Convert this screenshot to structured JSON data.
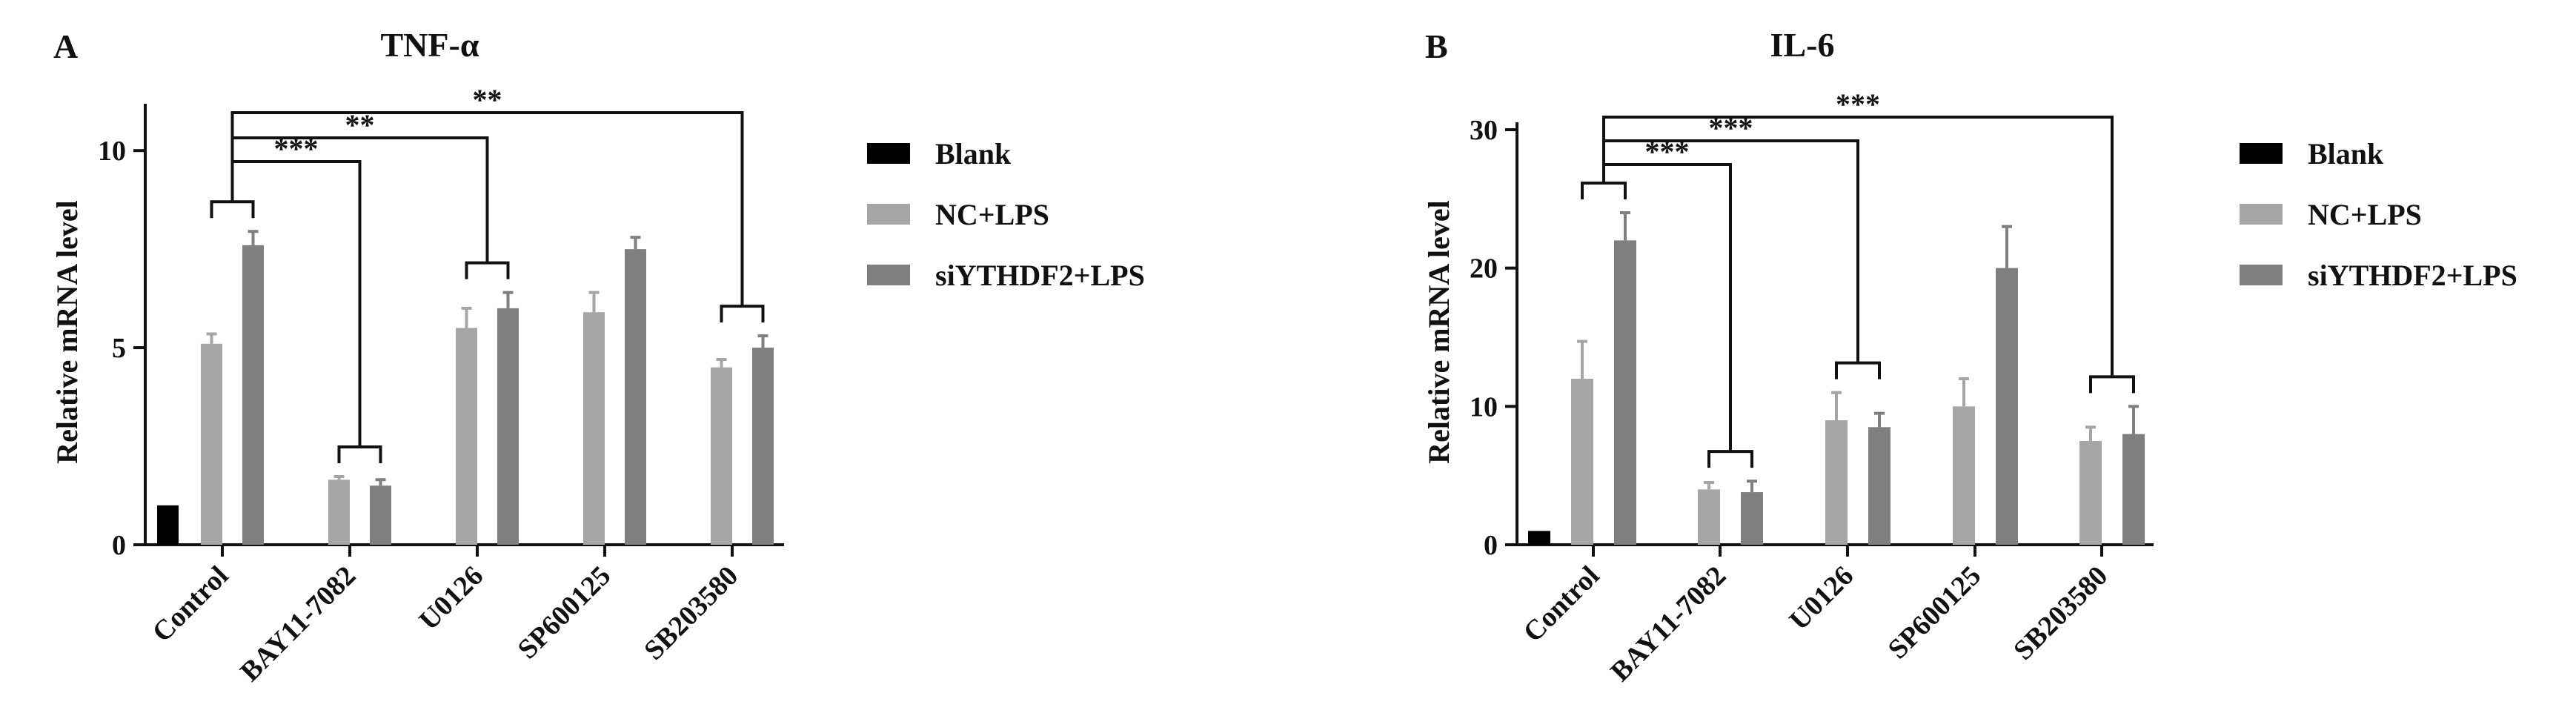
{
  "chart_data": [
    {
      "panel": "A",
      "type": "bar",
      "title": "TNF-α",
      "xlabel": "",
      "ylabel": "Relative mRNA level",
      "ylim": [
        0,
        11
      ],
      "yticks": [
        0,
        5,
        10
      ],
      "categories": [
        "Control",
        "BAY11-7082",
        "U0126",
        "SP600125",
        "SB203580"
      ],
      "legend_position": "right",
      "series": [
        {
          "name": "Blank",
          "color": "#000000",
          "values": [
            1.0,
            null,
            null,
            null,
            null
          ],
          "errors": [
            0,
            null,
            null,
            null,
            null
          ]
        },
        {
          "name": "NC+LPS",
          "color": "#a6a6a6",
          "values": [
            5.1,
            1.65,
            5.5,
            5.9,
            4.5
          ],
          "errors": [
            0.25,
            0.08,
            0.5,
            0.5,
            0.2
          ]
        },
        {
          "name": "siYTHDF2+LPS",
          "color": "#7f7f7f",
          "values": [
            7.6,
            1.5,
            6.0,
            7.5,
            5.0
          ],
          "errors": [
            0.35,
            0.15,
            0.4,
            0.3,
            0.3
          ]
        }
      ],
      "annotations": [
        {
          "label": "**",
          "from": "Control",
          "to": "SB203580"
        },
        {
          "label": "**",
          "from": "Control",
          "to": "U0126"
        },
        {
          "label": "***",
          "from": "Control",
          "to": "BAY11-7082"
        }
      ]
    },
    {
      "panel": "B",
      "type": "bar",
      "title": "IL-6",
      "xlabel": "",
      "ylabel": "Relative mRNA level",
      "ylim": [
        0,
        30
      ],
      "yticks": [
        0,
        10,
        20,
        30
      ],
      "categories": [
        "Control",
        "BAY11-7082",
        "U0126",
        "SP600125",
        "SB203580"
      ],
      "legend_position": "right",
      "series": [
        {
          "name": "Blank",
          "color": "#000000",
          "values": [
            1.0,
            null,
            null,
            null,
            null
          ],
          "errors": [
            0,
            null,
            null,
            null,
            null
          ]
        },
        {
          "name": "NC+LPS",
          "color": "#a6a6a6",
          "values": [
            12.0,
            4.0,
            9.0,
            10.0,
            7.5
          ],
          "errors": [
            2.7,
            0.5,
            2.0,
            2.0,
            1.0
          ]
        },
        {
          "name": "siYTHDF2+LPS",
          "color": "#7f7f7f",
          "values": [
            22.0,
            3.8,
            8.5,
            20.0,
            8.0
          ],
          "errors": [
            2.0,
            0.8,
            1.0,
            3.0,
            2.0
          ]
        }
      ],
      "annotations": [
        {
          "label": "***",
          "from": "Control",
          "to": "SB203580"
        },
        {
          "label": "***",
          "from": "Control",
          "to": "U0126"
        },
        {
          "label": "***",
          "from": "Control",
          "to": "BAY11-7082"
        }
      ]
    }
  ]
}
